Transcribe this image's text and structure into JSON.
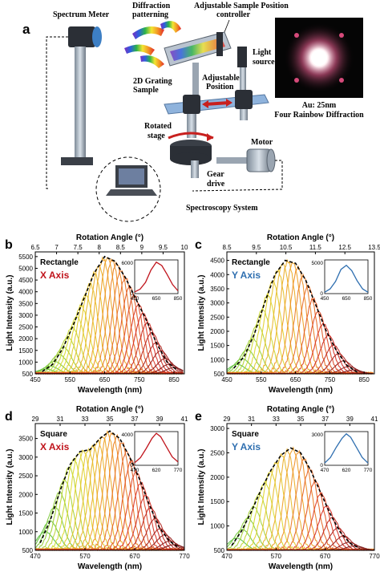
{
  "panel_a": {
    "letter": "a",
    "labels": {
      "spectrum_meter": "Spectrum Meter",
      "diffraction_patterning_1": "Diffraction",
      "diffraction_patterning_2": "patterning",
      "adjustable_sample_1": "Adjustable Sample Position",
      "adjustable_sample_2": "controller",
      "light_source_1": "Light",
      "light_source_2": "source",
      "grating_sample_1": "2D Grating",
      "grating_sample_2": "Sample",
      "adjustable_position_1": "Adjustable",
      "adjustable_position_2": "Position",
      "rotated_stage_1": "Rotated",
      "rotated_stage_2": "stage",
      "motor": "Motor",
      "gear_drive_1": "Gear",
      "gear_drive_2": "drive",
      "spectroscopy_system": "Spectroscopy System",
      "photo_caption_1": "Au: 25nm",
      "photo_caption_2": "Four Rainbow Diffraction"
    }
  },
  "chart_data": [
    {
      "type": "line",
      "panel": "b",
      "xlabel": "Wavelength (nm)",
      "ylabel": "Light Intensity (a.u.)",
      "top_axis_label": "Rotation Angle (°)",
      "top_ticks": [
        "6.5",
        "7",
        "7.5",
        "8",
        "8.5",
        "9",
        "9.5",
        "10"
      ],
      "x_ticks": [
        "450",
        "550",
        "650",
        "750",
        "850"
      ],
      "y_ticks": [
        "500",
        "1000",
        "1500",
        "2000",
        "2500",
        "3000",
        "3500",
        "4000",
        "4500",
        "5000",
        "5500"
      ],
      "xlim": [
        450,
        880
      ],
      "ylim": [
        500,
        5700
      ],
      "annotations": [
        "Rectangle",
        "X Axis"
      ],
      "annotation_color": "#c0141c",
      "inset": {
        "x_ticks": [
          "450",
          "650",
          "850"
        ],
        "y_ticks": [
          "0",
          "6000"
        ],
        "line_color": "#c0141c",
        "x": [
          450,
          500,
          550,
          600,
          650,
          700,
          750,
          800,
          850
        ],
        "y": [
          300,
          800,
          2000,
          4200,
          5600,
          5000,
          3400,
          1600,
          500
        ]
      },
      "num_curves": 30,
      "envelope": {
        "x": [
          470,
          500,
          530,
          560,
          590,
          620,
          650,
          680,
          710,
          740,
          770,
          800,
          830,
          860
        ],
        "y": [
          600,
          900,
          1600,
          2600,
          3700,
          4800,
          5500,
          5300,
          4600,
          3700,
          2800,
          1800,
          1000,
          650
        ]
      }
    },
    {
      "type": "line",
      "panel": "c",
      "xlabel": "Wavelength (nm)",
      "ylabel": "Light Intensity (a.u.)",
      "top_axis_label": "Rotation Angle (°)",
      "top_ticks": [
        "8.5",
        "9.5",
        "10.5",
        "11.5",
        "12.5",
        "13.5"
      ],
      "x_ticks": [
        "450",
        "550",
        "650",
        "750",
        "850"
      ],
      "y_ticks": [
        "500",
        "1000",
        "1500",
        "2000",
        "2500",
        "3000",
        "3500",
        "4000",
        "4500"
      ],
      "xlim": [
        450,
        880
      ],
      "ylim": [
        500,
        4800
      ],
      "annotations": [
        "Rectangle",
        "Y Axis"
      ],
      "annotation_color": "#2f6fb0",
      "inset": {
        "x_ticks": [
          "450",
          "650",
          "850"
        ],
        "y_ticks": [
          "0",
          "5000"
        ],
        "line_color": "#2f6fb0",
        "x": [
          450,
          500,
          550,
          600,
          650,
          700,
          750,
          800,
          850
        ],
        "y": [
          200,
          700,
          1800,
          3600,
          4200,
          3400,
          1900,
          700,
          200
        ]
      },
      "num_curves": 24,
      "envelope": {
        "x": [
          470,
          500,
          530,
          560,
          590,
          620,
          650,
          680,
          710,
          740,
          770,
          800,
          830
        ],
        "y": [
          700,
          1100,
          1900,
          3000,
          4000,
          4500,
          4400,
          3800,
          2900,
          2000,
          1300,
          800,
          560
        ]
      }
    },
    {
      "type": "line",
      "panel": "d",
      "xlabel": "Wavelength (nm)",
      "ylabel": "Light Intensity (a.u.)",
      "top_axis_label": "Rotation Angle (°)",
      "top_ticks": [
        "29",
        "31",
        "33",
        "35",
        "37",
        "39",
        "41"
      ],
      "x_ticks": [
        "470",
        "570",
        "670",
        "770"
      ],
      "y_ticks": [
        "500",
        "1000",
        "1500",
        "2000",
        "2500",
        "3000",
        "3500"
      ],
      "xlim": [
        470,
        770
      ],
      "ylim": [
        500,
        3900
      ],
      "annotations": [
        "Square",
        "X Axis"
      ],
      "annotation_color": "#c0141c",
      "inset": {
        "x_ticks": [
          "470",
          "620",
          "770"
        ],
        "y_ticks": [
          "0",
          "4000"
        ],
        "line_color": "#c0141c",
        "x": [
          470,
          510,
          550,
          590,
          620,
          650,
          690,
          730,
          770
        ],
        "y": [
          300,
          900,
          2000,
          3200,
          3800,
          3400,
          2200,
          1000,
          400
        ]
      },
      "num_curves": 28,
      "envelope": {
        "x": [
          480,
          500,
          520,
          540,
          560,
          580,
          600,
          620,
          640,
          660,
          680,
          700,
          720,
          740,
          760
        ],
        "y": [
          700,
          1300,
          2100,
          2800,
          3150,
          3200,
          3500,
          3700,
          3500,
          3000,
          2400,
          1700,
          1100,
          750,
          560
        ]
      }
    },
    {
      "type": "line",
      "panel": "e",
      "xlabel": "Wavelength (nm)",
      "ylabel": "Light Intensity (a.u.)",
      "top_axis_label": "Rotating Angle (°)",
      "top_ticks": [
        "29",
        "31",
        "33",
        "35",
        "37",
        "39",
        "41"
      ],
      "x_ticks": [
        "470",
        "570",
        "670",
        "770"
      ],
      "y_ticks": [
        "500",
        "1000",
        "1500",
        "2000",
        "2500",
        "3000"
      ],
      "xlim": [
        470,
        770
      ],
      "ylim": [
        500,
        3100
      ],
      "annotations": [
        "Square",
        "Y Axis"
      ],
      "annotation_color": "#2f6fb0",
      "inset": {
        "x_ticks": [
          "470",
          "620",
          "770"
        ],
        "y_ticks": [
          "0",
          "3000"
        ],
        "line_color": "#2f6fb0",
        "x": [
          470,
          510,
          550,
          590,
          620,
          650,
          690,
          730,
          770
        ],
        "y": [
          200,
          700,
          1600,
          2400,
          2800,
          2500,
          1600,
          700,
          200
        ]
      },
      "num_curves": 22,
      "envelope": {
        "x": [
          480,
          500,
          520,
          540,
          560,
          580,
          600,
          620,
          640,
          660,
          680,
          700,
          720,
          740
        ],
        "y": [
          600,
          900,
          1300,
          1750,
          2150,
          2450,
          2600,
          2500,
          2150,
          1700,
          1250,
          880,
          650,
          540
        ]
      }
    }
  ]
}
